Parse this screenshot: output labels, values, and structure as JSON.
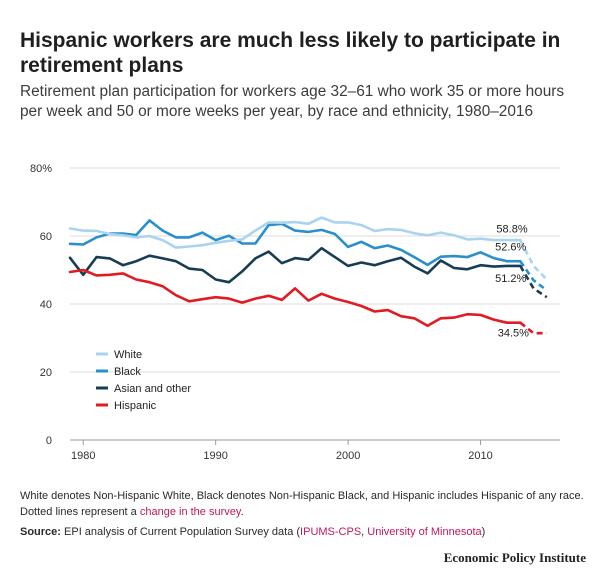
{
  "header": {
    "title": "Hispanic workers are much less likely to participate in retirement plans",
    "subtitle": "Retirement plan participation for workers age 32–61 who work 35 or more hours per week and 50 or more weeks per year, by race and ethnicity, 1980–2016"
  },
  "footer": {
    "note_text": "White denotes Non-Hispanic White, Black denotes Non-Hispanic Black, and Hispanic includes Hispanic of any race. Dotted lines represent a ",
    "note_link": "change in the survey",
    "note_end": ".",
    "source_label": "Source:",
    "source_text": " EPI analysis of Current Population Survey data (",
    "source_link1": "IPUMS-CPS",
    "source_sep": ", ",
    "source_link2": "University of Minnesota",
    "source_end": ")",
    "credit": "Economic Policy Institute"
  },
  "colors": {
    "white": "#aad4ee",
    "black": "#2a8fcc",
    "asian": "#173d55",
    "hispanic": "#e01b22",
    "link": "#c2185b"
  },
  "chart_data": {
    "type": "line",
    "title": "",
    "xlabel": "",
    "ylabel": "",
    "xlim": [
      1979,
      2016
    ],
    "ylim": [
      0,
      80
    ],
    "x_ticks": [
      "1980",
      "1990",
      "2000",
      "2010"
    ],
    "y_ticks": [
      "0",
      "20",
      "40",
      "60",
      "80%"
    ],
    "y_tick_values": [
      0,
      20,
      40,
      60,
      80
    ],
    "grid": "horizontal",
    "legend_position": "bottom-left",
    "annotations": [
      {
        "text": "58.8%",
        "series": "White"
      },
      {
        "text": "52.6%",
        "series": "Black"
      },
      {
        "text": "51.2%",
        "series": "Asian and other"
      },
      {
        "text": "34.5%",
        "series": "Hispanic"
      }
    ],
    "series": [
      {
        "name": "White",
        "color": "#aad4ee",
        "x": [
          1979,
          1980,
          1981,
          1982,
          1983,
          1984,
          1985,
          1986,
          1987,
          1988,
          1989,
          1990,
          1991,
          1992,
          1993,
          1994,
          1995,
          1996,
          1997,
          1998,
          1999,
          2000,
          2001,
          2002,
          2003,
          2004,
          2005,
          2006,
          2007,
          2008,
          2009,
          2010,
          2011,
          2012,
          2013
        ],
        "y": [
          62.2,
          61.6,
          61.5,
          60.6,
          60.2,
          59.6,
          60.0,
          58.8,
          56.6,
          56.9,
          57.3,
          58.0,
          58.6,
          59.0,
          61.6,
          64.0,
          63.9,
          64.1,
          63.6,
          65.4,
          64.0,
          64.0,
          63.2,
          61.5,
          62.0,
          61.8,
          60.8,
          60.2,
          61.0,
          60.2,
          59.0,
          59.2,
          58.8,
          58.8,
          58.8
        ],
        "dotted_x": [
          2013,
          2014,
          2015
        ],
        "dotted_y": [
          58.8,
          51.2,
          47.2
        ]
      },
      {
        "name": "Black",
        "color": "#2a8fcc",
        "x": [
          1979,
          1980,
          1981,
          1982,
          1983,
          1984,
          1985,
          1986,
          1987,
          1988,
          1989,
          1990,
          1991,
          1992,
          1993,
          1994,
          1995,
          1996,
          1997,
          1998,
          1999,
          2000,
          2001,
          2002,
          2003,
          2004,
          2005,
          2006,
          2007,
          2008,
          2009,
          2010,
          2011,
          2012,
          2013
        ],
        "y": [
          57.7,
          57.5,
          59.6,
          60.7,
          60.7,
          60.3,
          64.6,
          61.6,
          59.6,
          59.6,
          61.0,
          58.8,
          60.1,
          57.8,
          57.8,
          63.2,
          63.6,
          61.6,
          61.2,
          61.8,
          60.6,
          56.8,
          58.3,
          56.4,
          57.2,
          55.9,
          53.8,
          51.5,
          53.9,
          54.1,
          53.8,
          55.2,
          53.5,
          52.6,
          52.6
        ],
        "dotted_x": [
          2013,
          2014,
          2015
        ],
        "dotted_y": [
          52.6,
          47.0,
          44.0
        ]
      },
      {
        "name": "Asian and other",
        "color": "#173d55",
        "x": [
          1979,
          1980,
          1981,
          1982,
          1983,
          1984,
          1985,
          1986,
          1987,
          1988,
          1989,
          1990,
          1991,
          1992,
          1993,
          1994,
          1995,
          1996,
          1997,
          1998,
          1999,
          2000,
          2001,
          2002,
          2003,
          2004,
          2005,
          2006,
          2007,
          2008,
          2009,
          2010,
          2011,
          2012,
          2013
        ],
        "y": [
          53.6,
          48.6,
          53.8,
          53.4,
          51.4,
          52.6,
          54.2,
          53.4,
          52.6,
          50.4,
          50.0,
          47.2,
          46.4,
          49.6,
          53.4,
          55.4,
          52.0,
          53.5,
          53.0,
          56.4,
          53.8,
          51.2,
          52.2,
          51.4,
          52.6,
          53.6,
          51.0,
          49.0,
          52.8,
          50.6,
          50.2,
          51.4,
          51.0,
          51.2,
          51.2
        ],
        "dotted_x": [
          2013,
          2014,
          2015
        ],
        "dotted_y": [
          51.2,
          44.6,
          42.0
        ]
      },
      {
        "name": "Hispanic",
        "color": "#e01b22",
        "x": [
          1979,
          1980,
          1981,
          1982,
          1983,
          1984,
          1985,
          1986,
          1987,
          1988,
          1989,
          1990,
          1991,
          1992,
          1993,
          1994,
          1995,
          1996,
          1997,
          1998,
          1999,
          2000,
          2001,
          2002,
          2003,
          2004,
          2005,
          2006,
          2007,
          2008,
          2009,
          2010,
          2011,
          2012,
          2013
        ],
        "y": [
          49.4,
          50.0,
          48.4,
          48.6,
          49.0,
          47.2,
          46.4,
          45.2,
          42.6,
          40.8,
          41.4,
          42.0,
          41.6,
          40.4,
          41.6,
          42.4,
          41.2,
          44.6,
          41.0,
          43.0,
          41.6,
          40.6,
          39.4,
          37.8,
          38.2,
          36.4,
          35.8,
          33.6,
          35.8,
          36.0,
          37.0,
          36.8,
          35.4,
          34.5,
          34.5
        ],
        "dotted_x": [
          2013,
          2014,
          2015
        ],
        "dotted_y": [
          34.5,
          31.4,
          31.4
        ]
      }
    ]
  }
}
